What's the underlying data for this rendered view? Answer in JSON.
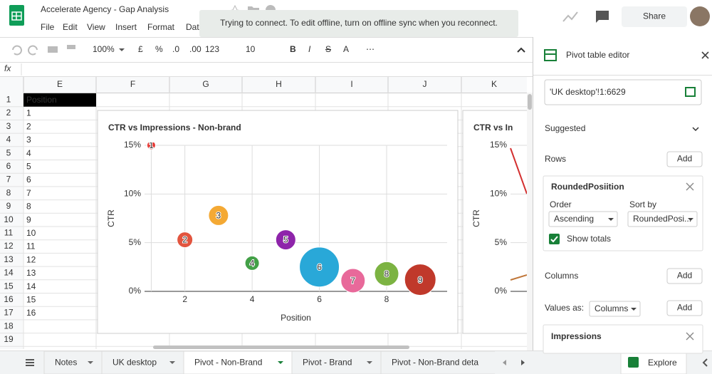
{
  "header": {
    "title": "Accelerate Agency - Gap Analysis",
    "menu": [
      "File",
      "Edit",
      "View",
      "Insert",
      "Format",
      "Dat"
    ],
    "share": "Share"
  },
  "toast": "Trying to connect. To edit offline, turn on offline sync when you reconnect.",
  "toolbar": {
    "zoom": "100%",
    "items": [
      "£",
      "%",
      ".0",
      ".00",
      "123",
      "10",
      "B",
      "I",
      "S",
      "A"
    ]
  },
  "formula_bar": {
    "label": "fx"
  },
  "grid": {
    "columns": [
      "E",
      "F",
      "G",
      "H",
      "I",
      "J",
      "K"
    ],
    "rows": [
      1,
      2,
      3,
      4,
      5,
      6,
      7,
      8,
      9,
      10,
      11,
      12,
      13,
      14,
      15,
      16,
      17,
      18,
      19
    ],
    "column_e": [
      "Position",
      1,
      2,
      3,
      4,
      5,
      6,
      7,
      8,
      9,
      10,
      11,
      12,
      13,
      14,
      15,
      16
    ]
  },
  "chart_data": {
    "type": "scatter",
    "title": "CTR vs Impressions - Non-brand",
    "x_label": "Position",
    "y_label": "CTR",
    "xlim": [
      0.8,
      9.8
    ],
    "ylim": [
      0,
      15
    ],
    "xticks": [
      2,
      4,
      6,
      8
    ],
    "yticks": [
      {
        "value": 0,
        "label": "0%"
      },
      {
        "value": 5,
        "label": "5%"
      },
      {
        "value": 10,
        "label": "10%"
      },
      {
        "value": 15,
        "label": "15%"
      }
    ],
    "grid": true,
    "series": [
      {
        "labels": [
          "1",
          "2",
          "3",
          "4",
          "5",
          "6",
          "7",
          "8",
          "9"
        ],
        "x": [
          1,
          2,
          3,
          4,
          5,
          6,
          7,
          8,
          9
        ],
        "values": [
          15,
          5.3,
          7.8,
          2.9,
          5.3,
          2.5,
          1.1,
          1.8,
          1.2
        ],
        "sizes": [
          360,
          1210,
          1960,
          1000,
          1960,
          7840,
          2890,
          2890,
          4840
        ],
        "colors": [
          "#e53935",
          "#e2553f",
          "#f4a934",
          "#43a047",
          "#8e24aa",
          "#29a8d8",
          "#e8699a",
          "#7cb342",
          "#c0392b"
        ]
      }
    ]
  },
  "chart2": {
    "title": "CTR vs In",
    "y_label": "CTR",
    "ylim": [
      0,
      15
    ],
    "yticks": [
      {
        "value": 0,
        "label": "0%"
      },
      {
        "value": 5,
        "label": "5%"
      },
      {
        "value": 10,
        "label": "10%"
      },
      {
        "value": 15,
        "label": "15%"
      }
    ]
  },
  "pivot_editor": {
    "title": "Pivot table editor",
    "range": "'UK desktop'!1:6629",
    "suggested": "Suggested",
    "rows_label": "Rows",
    "add": "Add",
    "row_field": {
      "name": "RoundedPosiition",
      "order_label": "Order",
      "sort_label": "Sort by",
      "order": "Ascending",
      "sort": "RoundedPosi...",
      "show_totals": "Show totals"
    },
    "columns_label": "Columns",
    "values_as_label": "Values as:",
    "values_as": "Columns",
    "value_field": "Impressions"
  },
  "tabs": [
    "Notes",
    "UK desktop",
    "Pivot - Non-Brand",
    "Pivot - Brand",
    "Pivot - Non-Brand deta"
  ],
  "explore": "Explore"
}
